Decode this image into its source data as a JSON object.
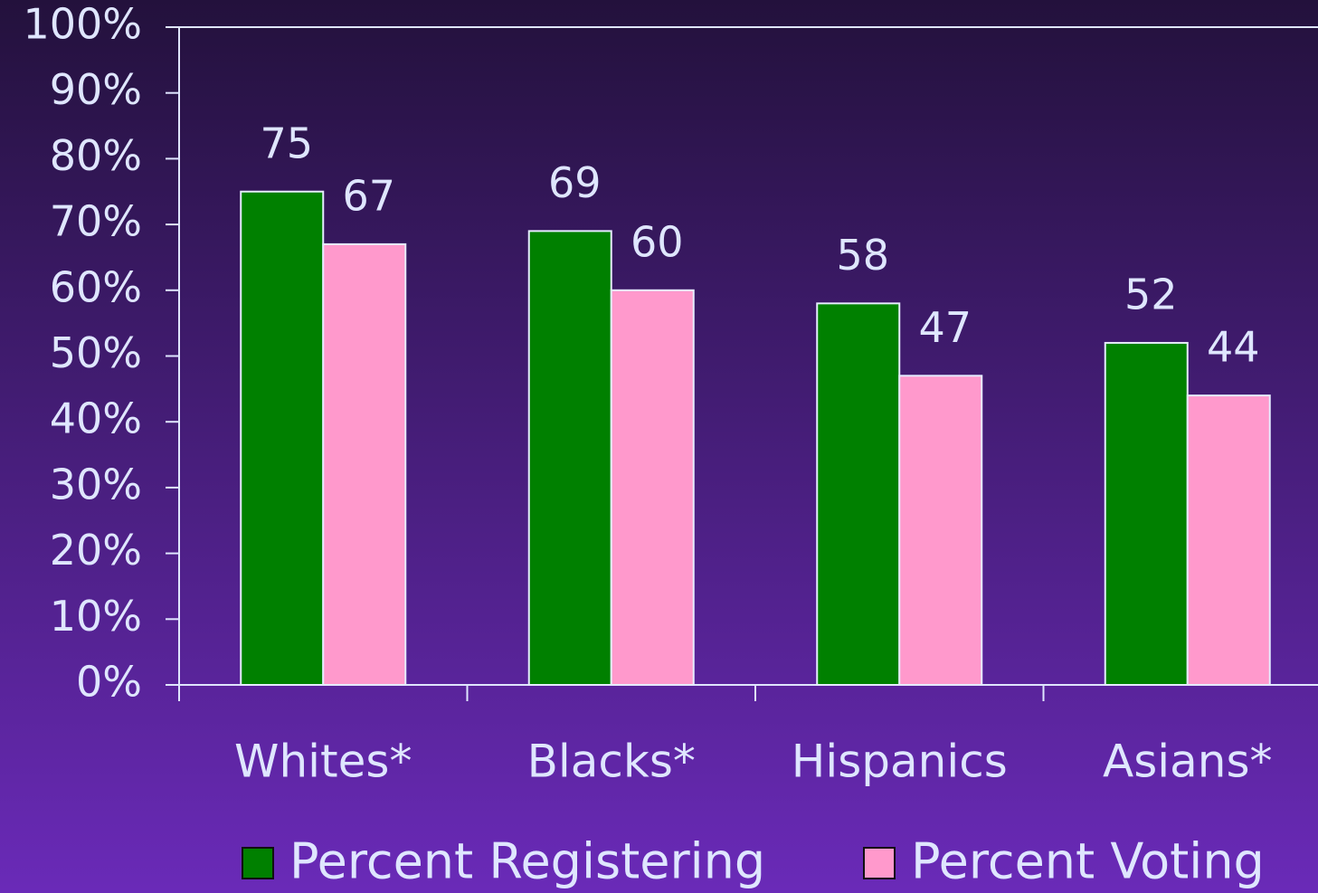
{
  "chart_data": {
    "type": "bar",
    "categories": [
      "Whites*",
      "Blacks*",
      "Hispanics",
      "Asians*"
    ],
    "series": [
      {
        "name": "Percent Registering",
        "color": "#008000",
        "values": [
          75,
          69,
          58,
          52
        ]
      },
      {
        "name": "Percent Voting",
        "color": "#ff99cc",
        "values": [
          67,
          60,
          47,
          44
        ]
      }
    ],
    "ylim": [
      0,
      100
    ],
    "yticks": [
      {
        "value": 0,
        "label": "0%"
      },
      {
        "value": 10,
        "label": "10%"
      },
      {
        "value": 20,
        "label": "20%"
      },
      {
        "value": 30,
        "label": "30%"
      },
      {
        "value": 40,
        "label": "40%"
      },
      {
        "value": 50,
        "label": "50%"
      },
      {
        "value": 60,
        "label": "60%"
      },
      {
        "value": 70,
        "label": "70%"
      },
      {
        "value": 80,
        "label": "80%"
      },
      {
        "value": 90,
        "label": "90%"
      },
      {
        "value": 100,
        "label": "100%"
      }
    ],
    "grid": false,
    "legend": "bottom"
  }
}
